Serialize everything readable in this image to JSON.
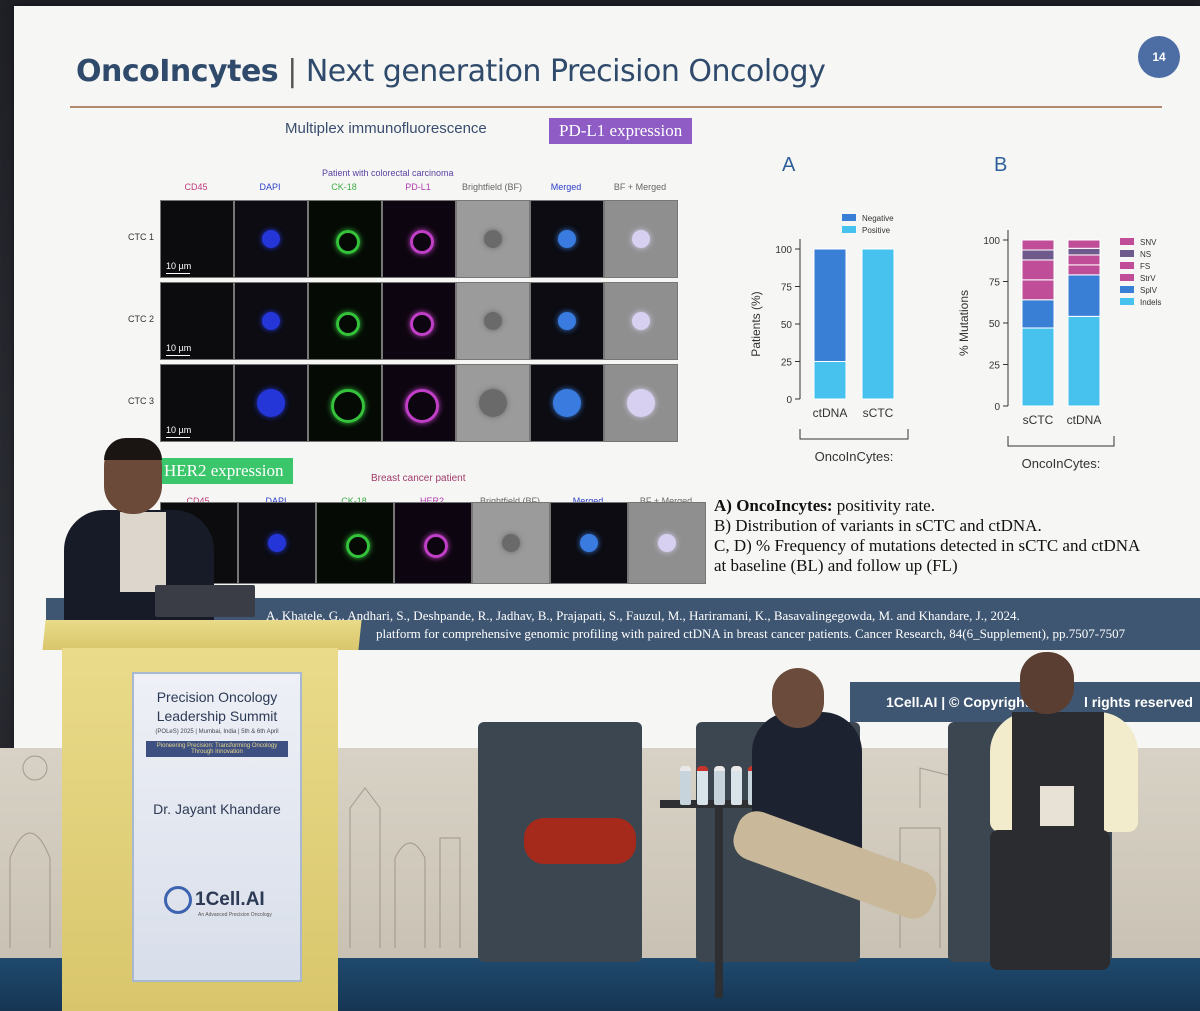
{
  "slide": {
    "title_brand": "OncoIncytes",
    "title_rest": "Next generation Precision Oncology",
    "page_number": "14",
    "section_heading": "Multiplex immunofluorescence",
    "pdl1_tag": "PD-L1 expression",
    "her2_tag": "HER2 expression",
    "grid1": {
      "caption": "Patient with colorectal carcinoma",
      "columns": [
        "CD45",
        "DAPI",
        "CK-18",
        "PD-L1",
        "Brightfield (BF)",
        "Merged",
        "BF + Merged"
      ],
      "column_colors": [
        "#c0397a",
        "#2d3fc9",
        "#3fae46",
        "#b03bb0",
        "#666666",
        "#2d3fc9",
        "#666666"
      ],
      "rows": [
        "CTC 1",
        "CTC 2",
        "CTC 3"
      ],
      "scale_label": "10 µm"
    },
    "grid2": {
      "caption": "Breast cancer patient",
      "columns": [
        "CD45",
        "DAPI",
        "CK-18",
        "HER2",
        "Brightfield (BF)",
        "Merged",
        "BF + Merged"
      ],
      "column_colors": [
        "#c0397a",
        "#2d3fc9",
        "#3fae46",
        "#b03bb0",
        "#666666",
        "#2d3fc9",
        "#666666"
      ]
    },
    "caption_lines": [
      {
        "bold": "A) OncoIncytes:",
        "text": " positivity rate."
      },
      {
        "bold": "",
        "text": "B) Distribution of variants in sCTC and ctDNA."
      },
      {
        "bold": "",
        "text": " C, D) % Frequency of mutations detected in sCTC and ctDNA"
      },
      {
        "bold": "",
        "text": "at baseline (BL) and follow up (FL)"
      }
    ],
    "reference_line1": "A. Khatele, G., Andhari, S., Deshpande, R., Jadhav, B., Prajapati, S., Fauzul, M., Hariramani, K., Basavalingegowda, M. and Khandare, J., 2024.",
    "reference_line2": "platform for comprehensive genomic profiling with paired ctDNA in breast cancer patients. Cancer Research, 84(6_Supplement), pp.7507-7507",
    "copyright": "1Cell.AI | © Copyright 2",
    "copyright_tail": "l rights reserved"
  },
  "chart_data": [
    {
      "type": "bar",
      "panel": "A",
      "categories": [
        "ctDNA",
        "sCTC"
      ],
      "series": [
        {
          "name": "Positive",
          "values": [
            25,
            100
          ],
          "color": "#47c1ee"
        },
        {
          "name": "Negative",
          "values": [
            75,
            0
          ],
          "color": "#3a7fd6"
        }
      ],
      "stacked": true,
      "ylabel": "Patients (%)",
      "yticks": [
        "0",
        "25",
        "50",
        "75",
        "100"
      ],
      "ylim": [
        0,
        100
      ],
      "group_label": "OncoInCytes:"
    },
    {
      "type": "bar",
      "panel": "B",
      "categories": [
        "sCTC",
        "ctDNA"
      ],
      "series": [
        {
          "name": "Indels",
          "values": [
            47,
            54
          ],
          "color": "#47c1ee"
        },
        {
          "name": "SplV",
          "values": [
            17,
            25
          ],
          "color": "#3a7fd6"
        },
        {
          "name": "StrV",
          "values": [
            12,
            6
          ],
          "color": "#c04d97"
        },
        {
          "name": "FS",
          "values": [
            12,
            6
          ],
          "color": "#c04d97"
        },
        {
          "name": "NS",
          "values": [
            6,
            4
          ],
          "color": "#6e5a8c"
        },
        {
          "name": "SNV",
          "values": [
            6,
            5
          ],
          "color": "#c04d97"
        }
      ],
      "stacked": true,
      "ylabel": "% Mutations",
      "yticks": [
        "0",
        "25",
        "50",
        "75",
        "100"
      ],
      "ylim": [
        0,
        100
      ],
      "group_label": "OncoInCytes:"
    }
  ],
  "podium": {
    "line1": "Precision Oncology",
    "line2": "Leadership Summit",
    "line3": "(POLeS) 2025 | Mumbai, India | 5th & 6th April",
    "tagline": "Pioneering Precision: Transforming Oncology Through Innovation",
    "speaker": "Dr. Jayant Khandare",
    "logo": "1Cell.AI",
    "logo_sub": "An Advanced Precision Oncology"
  }
}
